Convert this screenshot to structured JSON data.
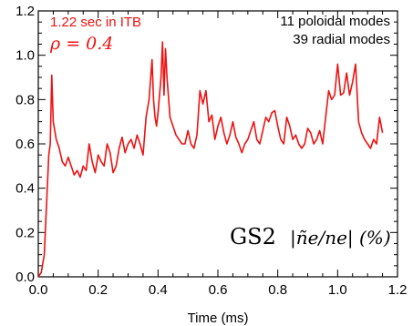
{
  "chart_data": {
    "type": "line",
    "xlabel": "Time (ms)",
    "ylabel": "",
    "xlim": [
      0.0,
      1.2
    ],
    "ylim": [
      0.0,
      1.2
    ],
    "x_ticks": [
      "0.0",
      "0.2",
      "0.4",
      "0.6",
      "0.8",
      "1.0",
      "1.2"
    ],
    "y_ticks": [
      "0.0",
      "0.2",
      "0.4",
      "0.6",
      "0.8",
      "1.0",
      "1.2"
    ],
    "grid": false,
    "annotations": {
      "time_label": "1.22 sec in ITB",
      "rho_label": "ρ = 0.4",
      "modes_line1": "11 poloidal modes",
      "modes_line2": "39 radial modes",
      "code_label": "GS2",
      "quantity_label": "|ñe/ne| (%)"
    },
    "colors": {
      "series": "#ee1111",
      "annotation": "#ee1111",
      "axis": "#000000"
    },
    "series": [
      {
        "x": [
          0.0,
          0.01,
          0.02,
          0.03,
          0.035,
          0.04,
          0.045,
          0.05,
          0.06,
          0.07,
          0.08,
          0.09,
          0.1,
          0.11,
          0.12,
          0.13,
          0.14,
          0.15,
          0.16,
          0.17,
          0.18,
          0.19,
          0.2,
          0.21,
          0.22,
          0.23,
          0.24,
          0.25,
          0.26,
          0.27,
          0.28,
          0.29,
          0.3,
          0.31,
          0.32,
          0.33,
          0.34,
          0.35,
          0.36,
          0.37,
          0.38,
          0.385,
          0.39,
          0.395,
          0.4,
          0.41,
          0.415,
          0.42,
          0.425,
          0.43,
          0.44,
          0.45,
          0.46,
          0.47,
          0.48,
          0.49,
          0.5,
          0.51,
          0.52,
          0.53,
          0.54,
          0.55,
          0.56,
          0.57,
          0.58,
          0.59,
          0.6,
          0.61,
          0.62,
          0.63,
          0.64,
          0.65,
          0.66,
          0.67,
          0.68,
          0.69,
          0.7,
          0.71,
          0.72,
          0.73,
          0.74,
          0.75,
          0.76,
          0.77,
          0.78,
          0.79,
          0.8,
          0.81,
          0.82,
          0.83,
          0.84,
          0.85,
          0.86,
          0.87,
          0.88,
          0.89,
          0.9,
          0.91,
          0.92,
          0.93,
          0.94,
          0.95,
          0.96,
          0.97,
          0.98,
          0.99,
          1.0,
          1.01,
          1.02,
          1.03,
          1.04,
          1.05,
          1.06,
          1.07,
          1.08,
          1.09,
          1.1,
          1.11,
          1.12,
          1.13,
          1.14,
          1.15
        ],
        "y": [
          0.0,
          0.02,
          0.1,
          0.4,
          0.55,
          0.6,
          0.91,
          0.7,
          0.62,
          0.58,
          0.52,
          0.5,
          0.54,
          0.5,
          0.46,
          0.48,
          0.45,
          0.5,
          0.48,
          0.6,
          0.52,
          0.47,
          0.55,
          0.52,
          0.5,
          0.6,
          0.56,
          0.47,
          0.5,
          0.58,
          0.63,
          0.56,
          0.6,
          0.62,
          0.58,
          0.64,
          0.6,
          0.55,
          0.72,
          0.8,
          0.98,
          0.8,
          0.72,
          0.68,
          0.74,
          0.9,
          1.06,
          0.82,
          1.03,
          0.9,
          0.72,
          0.68,
          0.64,
          0.62,
          0.6,
          0.6,
          0.66,
          0.6,
          0.58,
          0.64,
          0.84,
          0.78,
          0.84,
          0.7,
          0.73,
          0.62,
          0.68,
          0.72,
          0.65,
          0.6,
          0.64,
          0.7,
          0.63,
          0.6,
          0.56,
          0.6,
          0.62,
          0.66,
          0.7,
          0.62,
          0.6,
          0.66,
          0.72,
          0.7,
          0.74,
          0.75,
          0.68,
          0.62,
          0.6,
          0.72,
          0.68,
          0.62,
          0.64,
          0.6,
          0.58,
          0.6,
          0.67,
          0.65,
          0.6,
          0.62,
          0.66,
          0.6,
          0.72,
          0.84,
          0.8,
          0.82,
          0.96,
          0.82,
          0.83,
          0.92,
          0.82,
          0.88,
          0.96,
          0.7,
          0.65,
          0.62,
          0.6,
          0.58,
          0.62,
          0.6,
          0.72,
          0.65
        ]
      }
    ]
  }
}
